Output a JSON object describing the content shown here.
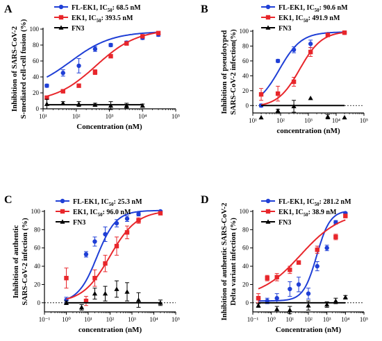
{
  "chart_data": [
    {
      "type": "line",
      "panel": "A",
      "ylabel": [
        "Inhibition of SARS-CoV-2",
        "S-mediated cell-cell fusion (%)"
      ],
      "xlabel": "Concentration (nM)",
      "x_scale": "log",
      "xlim": [
        10,
        100000
      ],
      "ylim": [
        0,
        100
      ],
      "y_ticks": [
        "0",
        "20",
        "40",
        "60",
        "80",
        "100"
      ],
      "x_ticks": [
        "10¹",
        "10²",
        "10³",
        "10⁴",
        "10⁵"
      ],
      "legend_position": "top-left",
      "series": [
        {
          "name": "FL-EK1",
          "ic50_label": "IC50: 68.5 nM",
          "color": "#1f3fd6",
          "marker": "circle",
          "x": [
            13,
            40,
            120,
            370,
            1100,
            3300,
            10000,
            30000
          ],
          "y": [
            29,
            45,
            54,
            75,
            80,
            83,
            89,
            93
          ],
          "err": [
            2,
            4,
            9,
            3,
            2,
            2,
            2,
            2
          ],
          "fit_ic50": 68.5,
          "fit_bottom": 22,
          "fit_top": 97,
          "fit_hill": 0.7
        },
        {
          "name": "EK1",
          "ic50_label": "IC50: 393.5 nM",
          "color": "#e8262b",
          "marker": "square",
          "x": [
            13,
            40,
            120,
            370,
            1100,
            3300,
            10000,
            30000
          ],
          "y": [
            14,
            22,
            29,
            46,
            66,
            82,
            91,
            95
          ],
          "err": [
            2,
            2,
            2,
            3,
            2,
            2,
            2,
            2
          ],
          "fit_ic50": 393.5,
          "fit_bottom": 8,
          "fit_top": 100,
          "fit_hill": 0.7
        },
        {
          "name": "FN3",
          "ic50_label": "",
          "color": "#000000",
          "marker": "triangle",
          "x": [
            13,
            40,
            120,
            370,
            1100,
            3300,
            10000
          ],
          "y": [
            6,
            7,
            6,
            5,
            4,
            4,
            4
          ],
          "err": [
            6,
            2,
            3,
            2,
            5,
            3,
            2
          ]
        }
      ]
    },
    {
      "type": "line",
      "panel": "B",
      "ylabel": [
        "Inhibition of pseudotyped",
        "SARS-CoV-2 infection(%)"
      ],
      "xlabel": "concentration (nM)",
      "x_scale": "log",
      "xlim": [
        10,
        100000
      ],
      "ylim": [
        -10,
        100
      ],
      "y_ticks": [
        "0",
        "20",
        "40",
        "60",
        "80",
        "100"
      ],
      "x_ticks": [
        "10¹",
        "10²",
        "10³",
        "10⁴",
        "10⁵"
      ],
      "legend_position": "top-left",
      "series": [
        {
          "name": "FL-EK1",
          "ic50_label": "IC50: 90.6 nM",
          "color": "#1f3fd6",
          "marker": "circle",
          "x": [
            20,
            80,
            300,
            1200,
            5000,
            20000
          ],
          "y": [
            0,
            60,
            75,
            83,
            96,
            98
          ],
          "err": [
            2,
            2,
            4,
            5,
            2,
            1
          ],
          "fit_ic50": 90.6,
          "fit_bottom": -2,
          "fit_top": 99,
          "fit_hill": 1.1
        },
        {
          "name": "EK1",
          "ic50_label": "IC50: 491.9 nM",
          "color": "#e8262b",
          "marker": "square",
          "x": [
            20,
            80,
            300,
            1200,
            5000,
            20000
          ],
          "y": [
            15,
            16,
            32,
            72,
            95,
            98
          ],
          "err": [
            8,
            10,
            6,
            6,
            2,
            1
          ],
          "fit_ic50": 491.9,
          "fit_bottom": -2,
          "fit_top": 100,
          "fit_hill": 1.1
        },
        {
          "name": "FN3",
          "ic50_label": "",
          "color": "#000000",
          "marker": "triangle",
          "x": [
            20,
            80,
            300,
            1200,
            5000,
            20000
          ],
          "y": [
            -16,
            -7,
            -1,
            10,
            -15,
            -16
          ],
          "err": [
            0,
            2,
            8,
            0,
            3,
            0
          ]
        }
      ]
    },
    {
      "type": "line",
      "panel": "C",
      "ylabel": [
        "Inhibition of authentic",
        "SARS-CoV-2 infection (%)"
      ],
      "xlabel": "concentration (nM)",
      "x_scale": "log",
      "xlim": [
        0.1,
        100000
      ],
      "ylim": [
        -10,
        100
      ],
      "y_ticks": [
        "0",
        "20",
        "40",
        "60",
        "80",
        "100"
      ],
      "x_ticks": [
        "10⁻¹",
        "10⁰",
        "10¹",
        "10²",
        "10³",
        "10⁴",
        "10⁵"
      ],
      "legend_position": "top-left",
      "series": [
        {
          "name": "FL-EK1",
          "ic50_label": "IC50: 25.3 nM",
          "color": "#1f3fd6",
          "marker": "circle",
          "x": [
            1,
            8,
            20,
            60,
            200,
            600,
            2000,
            20000
          ],
          "y": [
            3,
            53,
            67,
            75,
            87,
            92,
            97,
            100
          ],
          "err": [
            3,
            3,
            5,
            8,
            4,
            3,
            2,
            1
          ],
          "fit_ic50": 25.3,
          "fit_bottom": 0,
          "fit_top": 101,
          "fit_hill": 1.0
        },
        {
          "name": "EK1",
          "ic50_label": "IC50: 96.0 nM",
          "color": "#e8262b",
          "marker": "square",
          "x": [
            1,
            8,
            20,
            60,
            200,
            600,
            2000,
            20000
          ],
          "y": [
            27,
            2,
            27,
            43,
            62,
            77,
            90,
            98
          ],
          "err": [
            11,
            5,
            9,
            9,
            10,
            7,
            3,
            1
          ],
          "fit_ic50": 96.0,
          "fit_bottom": 0,
          "fit_top": 101,
          "fit_hill": 0.7
        },
        {
          "name": "FN3",
          "ic50_label": "",
          "color": "#000000",
          "marker": "triangle",
          "x": [
            1,
            5,
            20,
            60,
            200,
            600,
            2000,
            20000
          ],
          "y": [
            0,
            -5,
            10,
            10,
            15,
            12,
            3,
            0
          ],
          "err": [
            2,
            3,
            6,
            8,
            9,
            10,
            8,
            3
          ]
        }
      ]
    },
    {
      "type": "line",
      "panel": "D",
      "ylabel": [
        "Inhibition of authentic SARS-CoV-2",
        "Delta variant infection (%)"
      ],
      "xlabel": "Concentration (nM)",
      "x_scale": "log",
      "xlim": [
        0.1,
        100000
      ],
      "ylim": [
        -10,
        100
      ],
      "y_ticks": [
        "0",
        "20",
        "40",
        "60",
        "80",
        "100"
      ],
      "x_ticks": [
        "10⁻¹",
        "10⁰",
        "10¹",
        "10²",
        "10³",
        "10⁴",
        "10⁵"
      ],
      "legend_position": "top-left",
      "series": [
        {
          "name": "FL-EK1",
          "ic50_label": "IC50: 281.2 nM",
          "color": "#1f3fd6",
          "marker": "circle",
          "x": [
            0.2,
            0.6,
            2,
            10,
            30,
            100,
            300,
            1000,
            3000,
            10000
          ],
          "y": [
            5,
            2,
            5,
            15,
            20,
            10,
            40,
            60,
            88,
            98
          ],
          "err": [
            2,
            3,
            5,
            8,
            8,
            6,
            5,
            3,
            2,
            1
          ],
          "fit_ic50": 281.2,
          "fit_bottom": 2,
          "fit_top": 101,
          "fit_hill": 1.2
        },
        {
          "name": "EK1",
          "ic50_label": "IC50: 38.9 nM",
          "color": "#e8262b",
          "marker": "square",
          "x": [
            0.2,
            0.6,
            2,
            10,
            30,
            300,
            3000,
            10000
          ],
          "y": [
            5,
            27,
            28,
            36,
            44,
            58,
            72,
            95
          ],
          "err": [
            5,
            3,
            4,
            4,
            2,
            4,
            3,
            2
          ],
          "fit_ic50": 38.9,
          "fit_bottom": 5,
          "fit_top": 100,
          "fit_hill": 0.4
        },
        {
          "name": "FN3",
          "ic50_label": "",
          "color": "#000000",
          "marker": "triangle",
          "x": [
            0.2,
            2,
            10,
            100,
            1000,
            3000,
            10000
          ],
          "y": [
            -3,
            -7,
            -8,
            -3,
            -2,
            2,
            6
          ],
          "err": [
            2,
            3,
            4,
            5,
            3,
            3,
            2
          ]
        }
      ]
    }
  ]
}
